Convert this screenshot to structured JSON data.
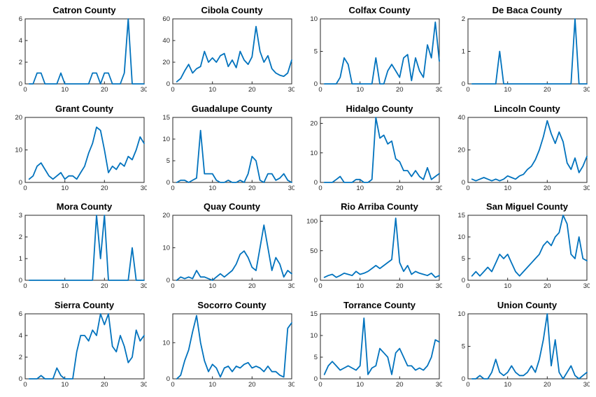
{
  "style": {
    "line_color": "#0072BD",
    "axis_color": "#262626",
    "background": "#ffffff"
  },
  "chart_data": [
    {
      "type": "line",
      "title": "Catron County",
      "xlim": [
        0,
        30
      ],
      "xticks": [
        0,
        10,
        20,
        30
      ],
      "ylim": [
        0,
        6
      ],
      "yticks": [
        0,
        2,
        4,
        6
      ],
      "values": [
        0,
        0,
        1,
        1,
        0,
        0,
        0,
        0,
        1,
        0,
        0,
        0,
        0,
        0,
        0,
        0,
        1,
        1,
        0,
        1,
        1,
        0,
        0,
        0,
        1,
        6,
        0,
        0,
        0,
        0
      ]
    },
    {
      "type": "line",
      "title": "Cibola County",
      "xlim": [
        0,
        30
      ],
      "xticks": [
        0,
        10,
        20,
        30
      ],
      "ylim": [
        0,
        60
      ],
      "yticks": [
        0,
        20,
        40,
        60
      ],
      "values": [
        2,
        5,
        12,
        18,
        10,
        14,
        16,
        30,
        20,
        24,
        20,
        26,
        28,
        16,
        22,
        15,
        30,
        22,
        18,
        25,
        53,
        30,
        20,
        26,
        14,
        10,
        8,
        7,
        10,
        22
      ]
    },
    {
      "type": "line",
      "title": "Colfax County",
      "xlim": [
        0,
        30
      ],
      "xticks": [
        0,
        10,
        20,
        30
      ],
      "ylim": [
        0,
        10
      ],
      "yticks": [
        0,
        5,
        10
      ],
      "values": [
        0,
        0,
        0,
        0,
        1,
        4,
        3,
        0,
        0,
        0,
        0,
        0,
        0,
        4,
        0,
        0,
        2,
        3,
        2,
        1,
        4,
        4.5,
        0.5,
        4,
        2,
        1,
        6,
        4,
        9.5,
        3.5
      ]
    },
    {
      "type": "line",
      "title": "De Baca County",
      "xlim": [
        0,
        30
      ],
      "xticks": [
        0,
        10,
        20,
        30
      ],
      "ylim": [
        0,
        2
      ],
      "yticks": [
        0,
        1,
        2
      ],
      "values": [
        0,
        0,
        0,
        0,
        0,
        0,
        0,
        1,
        0,
        0,
        0,
        0,
        0,
        0,
        0,
        0,
        0,
        0,
        0,
        0,
        0,
        0,
        0,
        0,
        0,
        0,
        2,
        0,
        0,
        0
      ]
    },
    {
      "type": "line",
      "title": "Grant County",
      "xlim": [
        0,
        30
      ],
      "xticks": [
        0,
        10,
        20,
        30
      ],
      "ylim": [
        0,
        20
      ],
      "yticks": [
        0,
        10,
        20
      ],
      "values": [
        1,
        2,
        5,
        6,
        4,
        2,
        1,
        2,
        3,
        1,
        2,
        2,
        1,
        3,
        5,
        9,
        12,
        17,
        16,
        10,
        3,
        5,
        4,
        6,
        5,
        8,
        7,
        10,
        14,
        12
      ]
    },
    {
      "type": "line",
      "title": "Guadalupe County",
      "xlim": [
        0,
        30
      ],
      "xticks": [
        0,
        10,
        20,
        30
      ],
      "ylim": [
        0,
        15
      ],
      "yticks": [
        0,
        5,
        10,
        15
      ],
      "values": [
        0,
        0.5,
        0.5,
        0,
        0.5,
        1,
        12,
        2,
        2,
        2,
        0.5,
        0,
        0,
        0.5,
        0,
        0,
        0.5,
        0,
        2,
        6,
        5,
        0.5,
        0,
        2,
        2,
        0.5,
        1,
        2,
        0.5,
        0
      ]
    },
    {
      "type": "line",
      "title": "Hidalgo County",
      "xlim": [
        0,
        30
      ],
      "xticks": [
        0,
        10,
        20,
        30
      ],
      "ylim": [
        0,
        22
      ],
      "yticks": [
        0,
        10,
        20
      ],
      "values": [
        0,
        0,
        0,
        1,
        2,
        0,
        0,
        0,
        1,
        1,
        0,
        0,
        1,
        22,
        15,
        16,
        13,
        14,
        8,
        7,
        4,
        4,
        2,
        4,
        2,
        1,
        5,
        1,
        2,
        3
      ]
    },
    {
      "type": "line",
      "title": "Lincoln County",
      "xlim": [
        0,
        30
      ],
      "xticks": [
        0,
        10,
        20,
        30
      ],
      "ylim": [
        0,
        40
      ],
      "yticks": [
        0,
        20,
        40
      ],
      "values": [
        2,
        1,
        2,
        3,
        2,
        1,
        2,
        1,
        2,
        4,
        3,
        2,
        4,
        5,
        8,
        10,
        14,
        20,
        28,
        38,
        30,
        24,
        31,
        25,
        12,
        8,
        15,
        6,
        10,
        16
      ]
    },
    {
      "type": "line",
      "title": "Mora County",
      "xlim": [
        0,
        30
      ],
      "xticks": [
        0,
        10,
        20,
        30
      ],
      "ylim": [
        0,
        3
      ],
      "yticks": [
        0,
        1,
        2,
        3
      ],
      "values": [
        0,
        0,
        0,
        0,
        0,
        0,
        0,
        0,
        0,
        0,
        0,
        0,
        0,
        0,
        0,
        0,
        0,
        3,
        1,
        3,
        0,
        0,
        0,
        0,
        0,
        0,
        1.5,
        0,
        0,
        0
      ]
    },
    {
      "type": "line",
      "title": "Quay County",
      "xlim": [
        0,
        30
      ],
      "xticks": [
        0,
        10,
        20,
        30
      ],
      "ylim": [
        0,
        20
      ],
      "yticks": [
        0,
        10,
        20
      ],
      "values": [
        0,
        1,
        0.5,
        1,
        0.5,
        3,
        1,
        1,
        0.5,
        0,
        1,
        2,
        1,
        2,
        3,
        5,
        8,
        9,
        7,
        4,
        3,
        10,
        17,
        10,
        3,
        7,
        5,
        1,
        3,
        2
      ]
    },
    {
      "type": "line",
      "title": "Rio Arriba County",
      "xlim": [
        0,
        30
      ],
      "xticks": [
        0,
        10,
        20,
        30
      ],
      "ylim": [
        0,
        110
      ],
      "yticks": [
        0,
        50,
        100
      ],
      "values": [
        5,
        8,
        10,
        5,
        8,
        12,
        10,
        8,
        15,
        10,
        12,
        15,
        20,
        25,
        20,
        25,
        30,
        35,
        105,
        30,
        15,
        25,
        10,
        15,
        12,
        10,
        8,
        12,
        5,
        8
      ]
    },
    {
      "type": "line",
      "title": "San Miguel County",
      "xlim": [
        0,
        30
      ],
      "xticks": [
        0,
        10,
        20,
        30
      ],
      "ylim": [
        0,
        15
      ],
      "yticks": [
        0,
        5,
        10,
        15
      ],
      "values": [
        1,
        2,
        1,
        2,
        3,
        2,
        4,
        6,
        5,
        6,
        4,
        2,
        1,
        2,
        3,
        4,
        5,
        6,
        8,
        9,
        8,
        10,
        11,
        15,
        13,
        6,
        5,
        10,
        5,
        4.5
      ]
    },
    {
      "type": "line",
      "title": "Sierra County",
      "xlim": [
        0,
        30
      ],
      "xticks": [
        0,
        10,
        20,
        30
      ],
      "ylim": [
        0,
        6
      ],
      "yticks": [
        0,
        2,
        4,
        6
      ],
      "values": [
        0,
        0,
        0,
        0.3,
        0,
        0,
        0,
        1,
        0.3,
        0,
        0,
        0,
        2.5,
        4,
        4,
        3.5,
        4.5,
        4,
        6,
        5,
        6,
        3,
        2.5,
        4,
        3,
        1.5,
        2,
        4.5,
        3.5,
        4
      ]
    },
    {
      "type": "line",
      "title": "Socorro County",
      "xlim": [
        0,
        30
      ],
      "xticks": [
        0,
        10,
        20,
        30
      ],
      "ylim": [
        0,
        18
      ],
      "yticks": [
        0,
        10
      ],
      "values": [
        0,
        1,
        5,
        8,
        13,
        17.5,
        10,
        5,
        2,
        4,
        3,
        0.5,
        3,
        3.5,
        2,
        3.5,
        3,
        4,
        4.5,
        3,
        3.5,
        3,
        2,
        3.5,
        2,
        2,
        1,
        0.5,
        14,
        15.5
      ]
    },
    {
      "type": "line",
      "title": "Torrance County",
      "xlim": [
        0,
        30
      ],
      "xticks": [
        0,
        10,
        20,
        30
      ],
      "ylim": [
        0,
        15
      ],
      "yticks": [
        0,
        5,
        10,
        15
      ],
      "values": [
        1,
        3,
        4,
        3,
        2,
        2.5,
        3,
        2.5,
        2,
        3,
        14,
        1,
        2.5,
        3,
        7,
        6,
        5,
        1,
        6,
        7,
        5,
        3,
        3,
        2,
        2.5,
        2,
        3,
        5,
        9,
        8.5
      ]
    },
    {
      "type": "line",
      "title": "Union County",
      "xlim": [
        0,
        30
      ],
      "xticks": [
        0,
        10,
        20,
        30
      ],
      "ylim": [
        0,
        10
      ],
      "yticks": [
        0,
        5,
        10
      ],
      "values": [
        0,
        0,
        0.5,
        0,
        0,
        1,
        3,
        1,
        0.5,
        1,
        2,
        1,
        0.5,
        0.5,
        1,
        2,
        1,
        3,
        6,
        10,
        2,
        6,
        1,
        0,
        1,
        2,
        0.5,
        0,
        0.5,
        1
      ]
    }
  ]
}
